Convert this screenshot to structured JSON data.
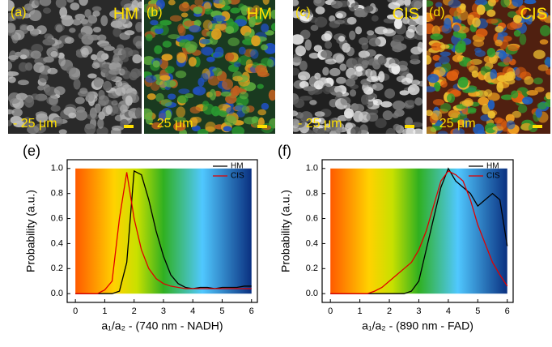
{
  "panels": [
    {
      "label": "(a)",
      "tag": "HM",
      "scale": "- 25 μm"
    },
    {
      "label": "(b)",
      "tag": "HM",
      "scale": "- 25 μm"
    },
    {
      "label": "(c)",
      "tag": "CIS",
      "scale": "- 25 μm"
    },
    {
      "label": "(d)",
      "tag": "CIS",
      "scale": "- 25 μm"
    }
  ],
  "chart_data": [
    {
      "type": "line",
      "label": "(e)",
      "xlabel": "a₁/a₂ - (740 nm - NADH)",
      "ylabel": "Probability (a.u.)",
      "xlim": [
        -0.28,
        6.2
      ],
      "ylim": [
        -0.07,
        1.07
      ],
      "xticks": [
        0,
        1,
        2,
        3,
        4,
        5,
        6
      ],
      "yticks": [
        {
          "value": 0,
          "label": "0.0"
        },
        0.2,
        0.4,
        0.6,
        0.8,
        {
          "value": 1,
          "label": "1.0"
        }
      ],
      "legend": "upper right",
      "x": [
        0,
        0.25,
        0.5,
        0.75,
        1,
        1.25,
        1.5,
        1.75,
        2,
        2.25,
        2.5,
        2.75,
        3,
        3.25,
        3.5,
        3.75,
        4,
        4.25,
        4.5,
        4.75,
        5,
        5.25,
        5.5,
        5.75,
        6
      ],
      "series": [
        {
          "name": "HM",
          "color": "#000000",
          "values": [
            0,
            0,
            0,
            0,
            0,
            0,
            0.02,
            0.25,
            0.98,
            0.95,
            0.75,
            0.5,
            0.3,
            0.15,
            0.08,
            0.05,
            0.04,
            0.05,
            0.05,
            0.04,
            0.05,
            0.05,
            0.05,
            0.06,
            0.06
          ]
        },
        {
          "name": "CIS",
          "color": "#e00000",
          "values": [
            0,
            0,
            0,
            0,
            0.03,
            0.1,
            0.6,
            0.97,
            0.6,
            0.35,
            0.2,
            0.12,
            0.08,
            0.06,
            0.05,
            0.04,
            0.04,
            0.04,
            0.04,
            0.04,
            0.04,
            0.04,
            0.04,
            0.04,
            0.04
          ]
        }
      ]
    },
    {
      "type": "line",
      "label": "(f)",
      "xlabel": "a₁/a₂ - (890 nm - FAD)",
      "ylabel": "Probability (a.u.)",
      "xlim": [
        -0.28,
        6.2
      ],
      "ylim": [
        -0.07,
        1.07
      ],
      "xticks": [
        0,
        1,
        2,
        3,
        4,
        5,
        6
      ],
      "yticks": [
        {
          "value": 0,
          "label": "0.0"
        },
        0.2,
        0.4,
        0.6,
        0.8,
        {
          "value": 1,
          "label": "1.0"
        }
      ],
      "legend": "upper right",
      "x": [
        0,
        0.25,
        0.5,
        0.75,
        1,
        1.25,
        1.5,
        1.75,
        2,
        2.25,
        2.5,
        2.75,
        3,
        3.25,
        3.5,
        3.75,
        4,
        4.25,
        4.5,
        4.75,
        5,
        5.25,
        5.5,
        5.75,
        6
      ],
      "series": [
        {
          "name": "HM",
          "color": "#000000",
          "values": [
            0,
            0,
            0,
            0,
            0,
            0,
            0,
            0,
            0,
            0,
            0,
            0.02,
            0.1,
            0.35,
            0.6,
            0.85,
            1.0,
            0.9,
            0.85,
            0.8,
            0.7,
            0.75,
            0.8,
            0.75,
            0.38
          ]
        },
        {
          "name": "CIS",
          "color": "#e00000",
          "values": [
            0,
            0,
            0,
            0,
            0,
            0,
            0.02,
            0.05,
            0.1,
            0.15,
            0.2,
            0.25,
            0.35,
            0.5,
            0.7,
            0.9,
            0.98,
            0.95,
            0.9,
            0.75,
            0.55,
            0.4,
            0.25,
            0.15,
            0.06
          ]
        }
      ]
    }
  ]
}
